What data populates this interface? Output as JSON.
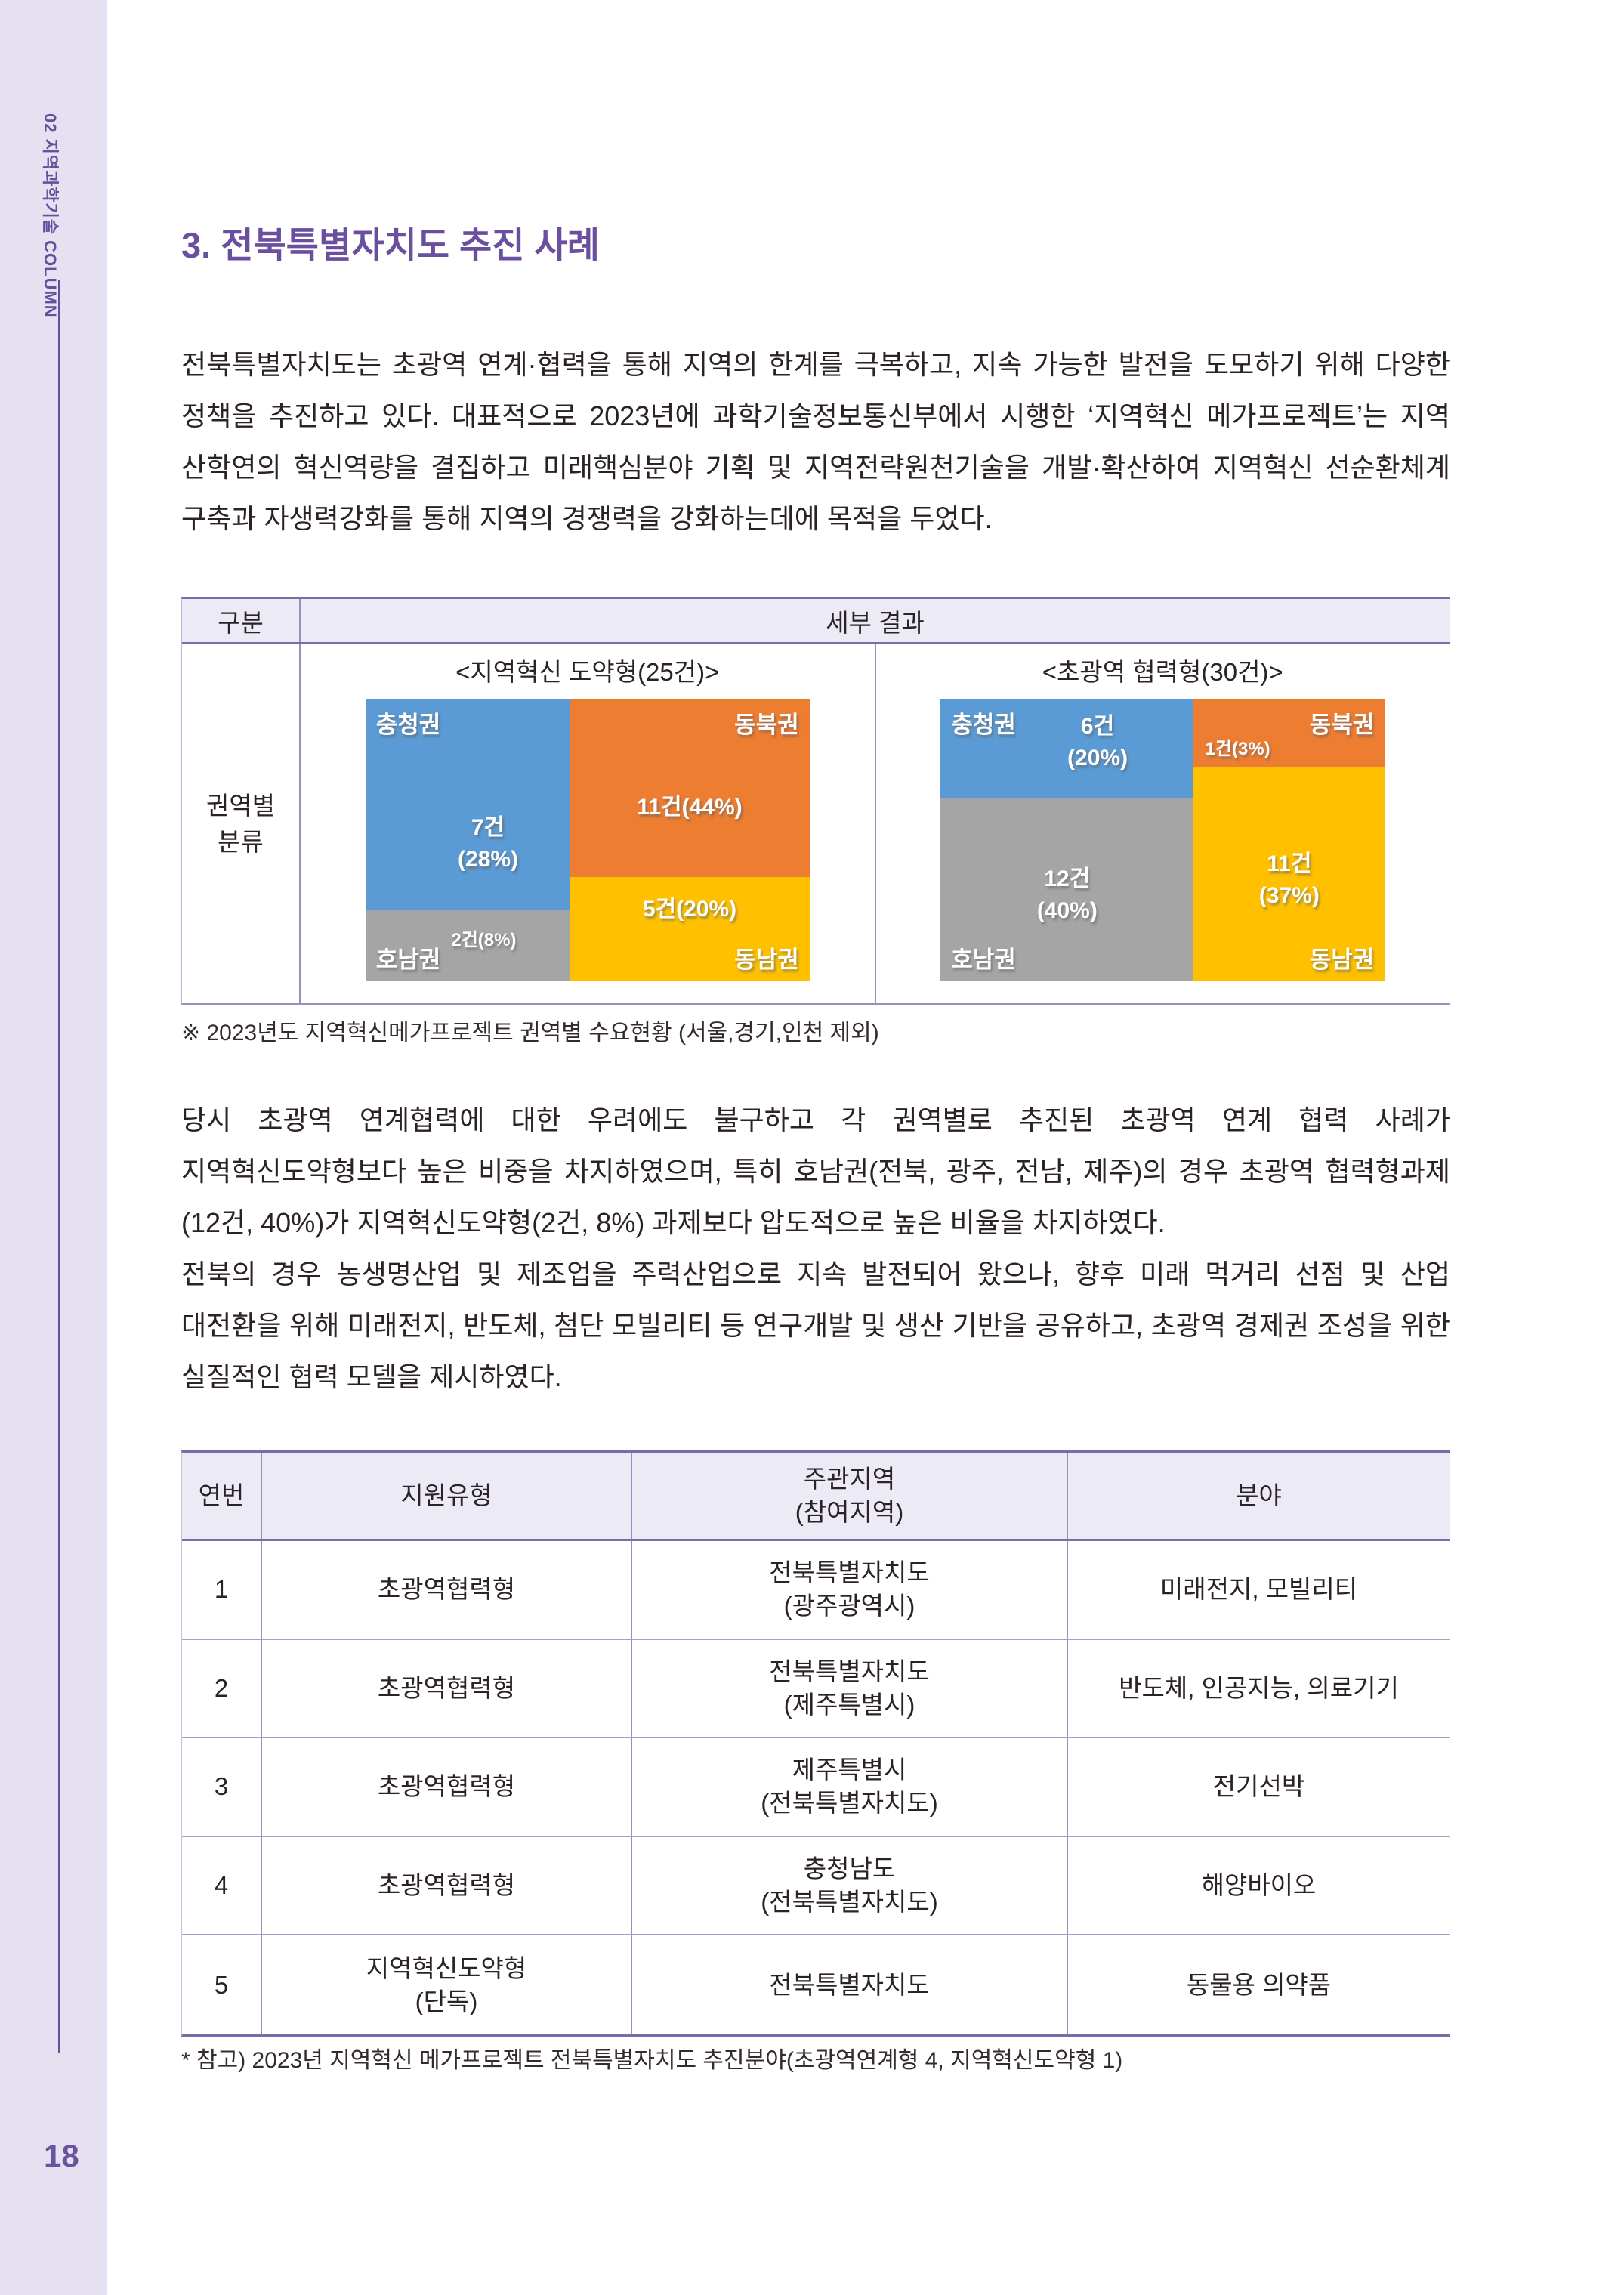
{
  "sidebar": {
    "label": "02 지역과학기술 COLUMN",
    "page_number": "18"
  },
  "title": "3. 전북특별자치도 추진 사례",
  "paragraphs": {
    "intro": "전북특별자치도는 초광역 연계·협력을 통해 지역의 한계를 극복하고, 지속 가능한 발전을 도모하기 위해 다양한 정책을 추진하고 있다. 대표적으로 2023년에 과학기술정보통신부에서 시행한 ‘지역혁신 메가프로젝트’는 지역 산학연의 혁신역량을 결집하고 미래핵심분야 기획 및 지역전략원천기술을 개발·확산하여 지역혁신 선순환체계 구축과 자생력강화를 통해 지역의 경쟁력을 강화하는데에 목적을 두었다.",
    "body1": "당시 초광역 연계협력에 대한 우려에도 불구하고 각 권역별로 추진된 초광역 연계 협력 사례가 지역혁신도약형보다 높은 비중을 차지하였으며, 특히 호남권(전북, 광주, 전남, 제주)의 경우 초광역 협력형과제(12건, 40%)가 지역혁신도약형(2건, 8%) 과제보다 압도적으로 높은 비율을 차지하였다.",
    "body2": "전북의 경우 농생명산업 및 제조업을 주력산업으로 지속 발전되어 왔으나, 향후 미래 먹거리 선점 및 산업 대전환을 위해 미래전지, 반도체, 첨단 모빌리티 등 연구개발 및 생산 기반을 공유하고, 초광역 경제권 조성을 위한 실질적인 협력 모델을 제시하였다."
  },
  "result_table": {
    "col_gubun": "구분",
    "col_result": "세부 결과",
    "row_label": "권역별\n분류",
    "left_chart": {
      "subtitle": "<지역혁신 도약형(25건)>",
      "tiles": [
        {
          "name": "충청권",
          "value": "7건\n(28%)"
        },
        {
          "name": "동북권",
          "value": "11건(44%)"
        },
        {
          "name": "호남권",
          "value": "2건(8%)"
        },
        {
          "name": "동남권",
          "value": "5건(20%)"
        }
      ]
    },
    "right_chart": {
      "subtitle": "<초광역 협력형(30건)>",
      "tiles": [
        {
          "name": "충청권",
          "value": "6건\n(20%)"
        },
        {
          "name": "동북권",
          "value": "1건(3%)"
        },
        {
          "name": "호남권",
          "value": "12건\n(40%)"
        },
        {
          "name": "동남권",
          "value": "11건\n(37%)"
        }
      ]
    },
    "footnote": "※ 2023년도 지역혁신메가프로젝트 권역별 수요현황 (서울,경기,인천 제외)"
  },
  "project_table": {
    "headers": [
      "연번",
      "지원유형",
      "주관지역\n(참여지역)",
      "분야"
    ],
    "rows": [
      [
        "1",
        "초광역협력형",
        "전북특별자치도\n(광주광역시)",
        "미래전지, 모빌리티"
      ],
      [
        "2",
        "초광역협력형",
        "전북특별자치도\n(제주특별시)",
        "반도체, 인공지능, 의료기기"
      ],
      [
        "3",
        "초광역협력형",
        "제주특별시\n(전북특별자치도)",
        "전기선박"
      ],
      [
        "4",
        "초광역협력형",
        "충청남도\n(전북특별자치도)",
        "해양바이오"
      ],
      [
        "5",
        "지역혁신도약형\n(단독)",
        "전북특별자치도",
        "동물용 의약품"
      ]
    ],
    "footnote": "* 참고) 2023년 지역혁신 메가프로젝트 전북특별자치도 추진분야(초광역연계형 4, 지역혁신도약형 1)"
  },
  "colors": {
    "accent_purple": "#6a4f9f",
    "sidebar_bg": "#e5e1f0",
    "table_header_bg": "#eceaf4",
    "table_border": "#7a6bac",
    "treemap_blue": "#5b9bd5",
    "treemap_orange": "#ed7d31",
    "treemap_gray": "#a5a5a5",
    "treemap_yellow": "#ffc000"
  },
  "chart_data": [
    {
      "type": "treemap",
      "title": "<지역혁신 도약형(25건)>",
      "total_count": 25,
      "items": [
        {
          "region": "충청권",
          "count": 7,
          "pct": 28,
          "color": "#5b9bd5"
        },
        {
          "region": "동북권",
          "count": 11,
          "pct": 44,
          "color": "#ed7d31"
        },
        {
          "region": "호남권",
          "count": 2,
          "pct": 8,
          "color": "#a5a5a5"
        },
        {
          "region": "동남권",
          "count": 5,
          "pct": 20,
          "color": "#ffc000"
        }
      ]
    },
    {
      "type": "treemap",
      "title": "<초광역 협력형(30건)>",
      "total_count": 30,
      "items": [
        {
          "region": "충청권",
          "count": 6,
          "pct": 20,
          "color": "#5b9bd5"
        },
        {
          "region": "동북권",
          "count": 1,
          "pct": 3,
          "color": "#ed7d31"
        },
        {
          "region": "호남권",
          "count": 12,
          "pct": 40,
          "color": "#a5a5a5"
        },
        {
          "region": "동남권",
          "count": 11,
          "pct": 37,
          "color": "#ffc000"
        }
      ]
    }
  ]
}
